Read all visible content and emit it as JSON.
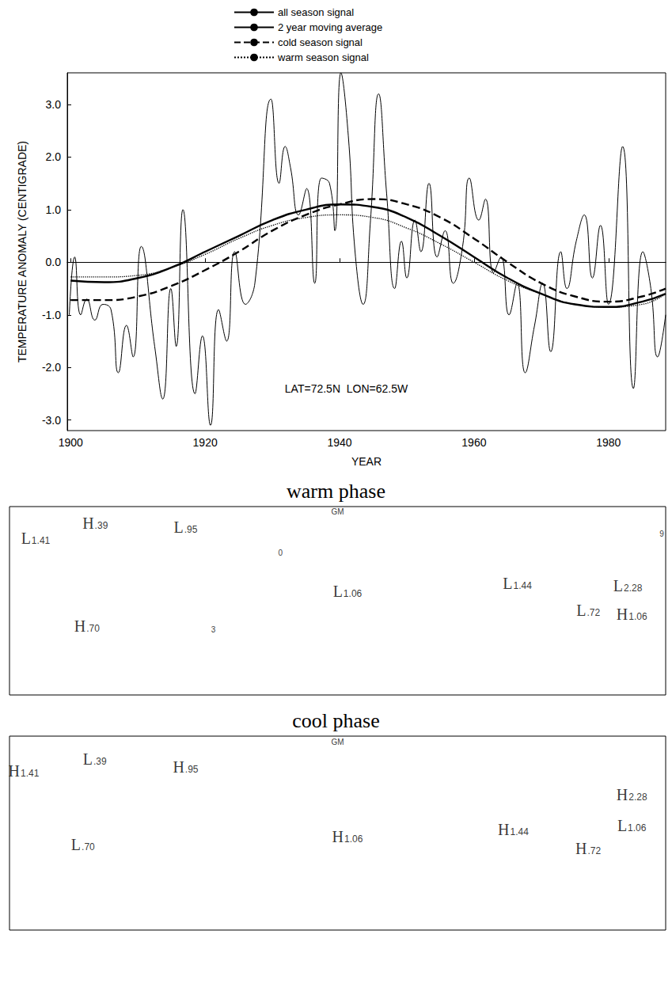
{
  "chart_data": [
    {
      "type": "line",
      "y_label": "TEMPERATURE ANOMALY (CENTIGRADE)",
      "x_label": "YEAR",
      "xlim": [
        1899.5,
        1988.5
      ],
      "xticks": [
        1900,
        1920,
        1940,
        1960,
        1980
      ],
      "ylim": [
        -3.2,
        3.6
      ],
      "yticks": [
        {
          "value": -3,
          "label": "-3.0"
        },
        {
          "value": -2,
          "label": "-2.0"
        },
        {
          "value": -1,
          "label": "-1.0"
        },
        {
          "value": 0,
          "label": "0.0"
        },
        {
          "value": 1,
          "label": "1.0"
        },
        {
          "value": 2,
          "label": "2.0"
        },
        {
          "value": 3,
          "label": "3.0"
        }
      ],
      "legend": "top",
      "grid": false,
      "annotations": [
        {
          "text": "LAT=72.5N  LON=62.5W",
          "x": 1941,
          "y": -2.4
        }
      ],
      "series": [
        {
          "name": "all season signal",
          "color": "#000000",
          "line_style": "solid",
          "x": [
            1900,
            1905,
            1910,
            1915,
            1920,
            1925,
            1930,
            1935,
            1940,
            1945,
            1950,
            1955,
            1960,
            1965,
            1970,
            1975,
            1980,
            1985,
            1988.5
          ],
          "values": [
            -0.35,
            -0.38,
            -0.3,
            -0.1,
            0.2,
            0.5,
            0.8,
            1.0,
            1.1,
            1.05,
            0.85,
            0.5,
            0.1,
            -0.3,
            -0.6,
            -0.8,
            -0.85,
            -0.75,
            -0.6
          ]
        },
        {
          "name": "2 year moving average",
          "color": "#000000",
          "line_style": "solid",
          "x": [
            1899.8,
            1900.6,
            1901.5,
            1902.4,
            1903.6,
            1904.8,
            1906.0,
            1907.1,
            1908.3,
            1909.3,
            1910.5,
            1912.5,
            1913.7,
            1914.9,
            1915.7,
            1916.7,
            1918.5,
            1919.6,
            1920.8,
            1922.0,
            1923.2,
            1924.4,
            1926.0,
            1927.4,
            1929.8,
            1931.0,
            1931.9,
            1932.7,
            1933.9,
            1935.1,
            1936.3,
            1937.3,
            1938.5,
            1939.3,
            1940.2,
            1941.3,
            1942.3,
            1943.5,
            1944.6,
            1945.8,
            1947.0,
            1948.2,
            1949.2,
            1950.0,
            1951.2,
            1952.1,
            1953.3,
            1954.5,
            1955.7,
            1956.9,
            1958.3,
            1959.3,
            1960.7,
            1961.7,
            1962.9,
            1964.0,
            1965.2,
            1966.4,
            1967.6,
            1969.0,
            1970.2,
            1971.4,
            1972.9,
            1973.8,
            1975.2,
            1976.4,
            1977.6,
            1978.8,
            1980.0,
            1982.1,
            1983.7,
            1985.1,
            1986.3,
            1987.3,
            1988.5
          ],
          "values": [
            -1.0,
            0.1,
            -1.0,
            -0.7,
            -1.1,
            -0.8,
            -0.9,
            -2.1,
            -1.2,
            -1.8,
            0.3,
            -1.6,
            -2.6,
            -0.5,
            -1.6,
            1.0,
            -2.5,
            -1.4,
            -3.1,
            -0.9,
            -1.5,
            0.2,
            -0.8,
            -0.4,
            3.1,
            1.5,
            2.2,
            1.8,
            0.9,
            1.4,
            -0.4,
            1.6,
            1.5,
            0.6,
            3.6,
            2.4,
            0.2,
            -0.8,
            0.8,
            3.2,
            1.3,
            -0.5,
            0.4,
            -0.3,
            0.8,
            0.2,
            1.5,
            0.1,
            0.6,
            -0.4,
            0.3,
            1.6,
            0.8,
            1.2,
            -0.2,
            0.1,
            -1.0,
            -0.4,
            -2.1,
            -1.2,
            -0.4,
            -1.7,
            0.2,
            -0.5,
            0.4,
            0.9,
            -0.3,
            0.7,
            -0.8,
            2.2,
            -2.4,
            0.2,
            -0.5,
            -1.8,
            -1.0
          ]
        },
        {
          "name": "cold season signal",
          "color": "#000000",
          "line_style": "dashed",
          "x": [
            1900,
            1905,
            1910,
            1915,
            1920,
            1925,
            1930,
            1935,
            1940,
            1945,
            1950,
            1955,
            1960,
            1965,
            1970,
            1975,
            1980,
            1985,
            1988.5
          ],
          "values": [
            -0.72,
            -0.72,
            -0.65,
            -0.45,
            -0.15,
            0.2,
            0.6,
            0.9,
            1.1,
            1.2,
            1.1,
            0.85,
            0.45,
            0.0,
            -0.4,
            -0.65,
            -0.75,
            -0.65,
            -0.5
          ]
        },
        {
          "name": "warm season signal",
          "color": "#000000",
          "line_style": "dotted",
          "x": [
            1900,
            1905,
            1910,
            1915,
            1920,
            1925,
            1930,
            1935,
            1940,
            1945,
            1950,
            1955,
            1960,
            1965,
            1970,
            1975,
            1980,
            1985,
            1988.5
          ],
          "values": [
            -0.28,
            -0.28,
            -0.25,
            -0.1,
            0.15,
            0.45,
            0.7,
            0.85,
            0.9,
            0.85,
            0.65,
            0.35,
            0.0,
            -0.35,
            -0.6,
            -0.8,
            -0.85,
            -0.8,
            -0.6
          ]
        }
      ]
    },
    {
      "type": "map",
      "title": "warm phase",
      "xlim": [
        -180,
        180
      ],
      "ylim": [
        -60,
        80
      ],
      "tick_labels": false,
      "points": [
        {
          "label": "H",
          "value": 0.39,
          "value_label": ".39",
          "lon": -133,
          "lat": 67.4
        },
        {
          "label": "L",
          "value": 1.41,
          "value_label": "1.41",
          "lon": -165.7,
          "lat": 56.6
        },
        {
          "label": "L",
          "value": 0.95,
          "value_label": ".95",
          "lon": -83.4,
          "lat": 64.6
        },
        {
          "label": "L",
          "value": 1.06,
          "value_label": "1.06",
          "lon": 5.4,
          "lat": 17.1
        },
        {
          "label": "L",
          "value": 1.44,
          "value_label": "1.44",
          "lon": 98.6,
          "lat": 22.9
        },
        {
          "label": "L",
          "value": 0.72,
          "value_label": ".72",
          "lon": 137.5,
          "lat": 2.9
        },
        {
          "label": "L",
          "value": 2.28,
          "value_label": "2.28",
          "lon": 159.2,
          "lat": 21.1
        },
        {
          "label": "H",
          "value": 1.06,
          "value_label": "1.06",
          "lon": 161.4,
          "lat": 0
        },
        {
          "label": "H",
          "value": 0.7,
          "value_label": ".70",
          "lon": -137.5,
          "lat": -8.6
        }
      ],
      "labels": [
        {
          "text": "GM",
          "lon": 0,
          "lat": 76
        },
        {
          "text": "3",
          "lon": -68.2,
          "lat": -11.4
        },
        {
          "text": "0",
          "lon": -31.4,
          "lat": 45.7
        },
        {
          "text": "9",
          "lon": 177.8,
          "lat": 60
        }
      ]
    },
    {
      "type": "map",
      "title": "cool phase",
      "xlim": [
        -180,
        180
      ],
      "ylim": [
        -60,
        80
      ],
      "tick_labels": false,
      "points": [
        {
          "label": "H",
          "value": 1.41,
          "value_label": "1.41",
          "lon": -172.2,
          "lat": 54.8
        },
        {
          "label": "L",
          "value": 0.39,
          "value_label": ".39",
          "lon": -133.2,
          "lat": 63.2
        },
        {
          "label": "H",
          "value": 0.95,
          "value_label": ".95",
          "lon": -83.4,
          "lat": 57.6
        },
        {
          "label": "H",
          "value": 1.06,
          "value_label": "1.06",
          "lon": 5.4,
          "lat": 7.2
        },
        {
          "label": "H",
          "value": 1.44,
          "value_label": "1.44",
          "lon": 96.4,
          "lat": 12.8
        },
        {
          "label": "H",
          "value": 0.72,
          "value_label": ".72",
          "lon": 137.5,
          "lat": -1.2
        },
        {
          "label": "H",
          "value": 2.28,
          "value_label": "2.28",
          "lon": 161.4,
          "lat": 38
        },
        {
          "label": "L",
          "value": 1.06,
          "value_label": "1.06",
          "lon": 161.4,
          "lat": 15.6
        },
        {
          "label": "L",
          "value": 0.7,
          "value_label": ".70",
          "lon": -139.7,
          "lat": 1.6
        }
      ],
      "labels": [
        {
          "text": "GM",
          "lon": 0,
          "lat": 76
        }
      ]
    }
  ]
}
